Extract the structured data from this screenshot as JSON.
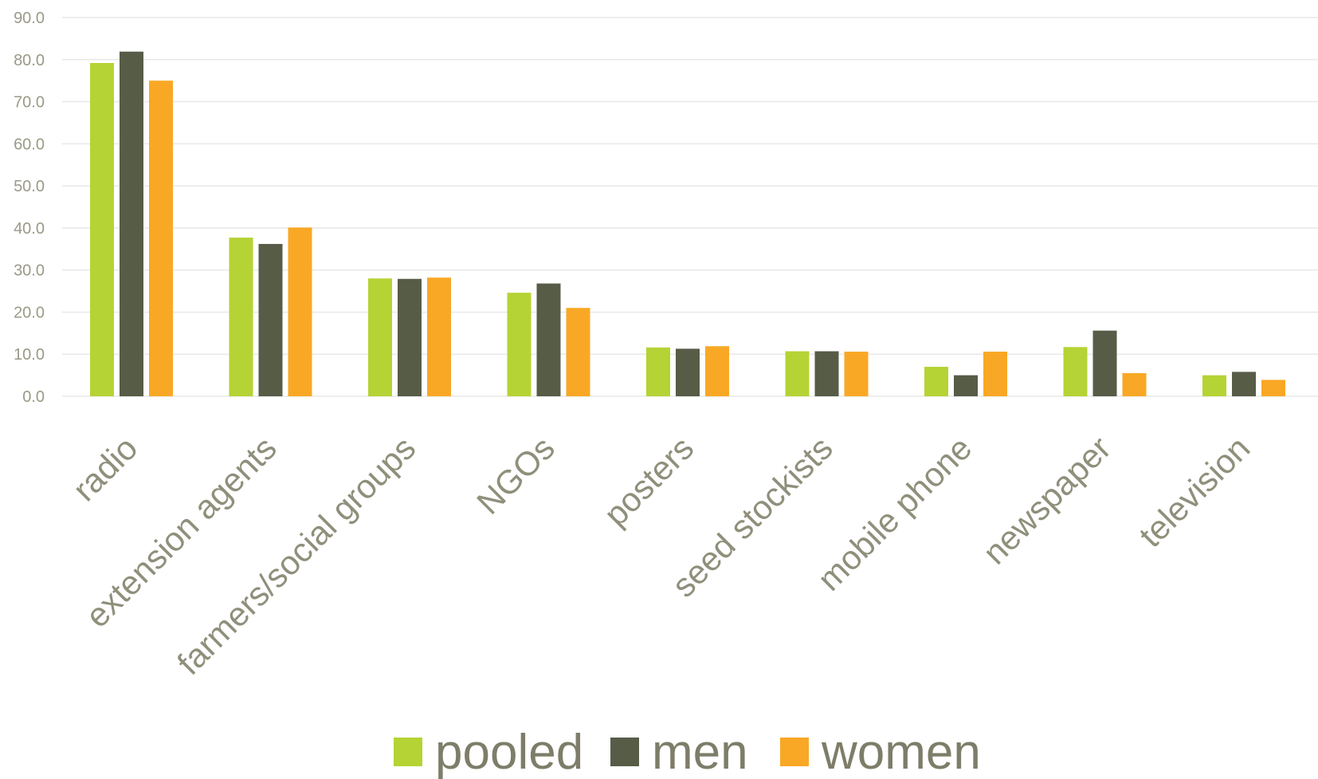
{
  "chart_data": {
    "type": "bar",
    "title": "",
    "xlabel": "",
    "ylabel": "",
    "categories": [
      "radio",
      "extension agents",
      "farmers/social groups",
      "NGOs",
      "posters",
      "seed stockists",
      "mobile phone",
      "newspaper",
      "television"
    ],
    "series": [
      {
        "name": "pooled",
        "color": "#b5d334",
        "values": [
          79.2,
          37.7,
          28.0,
          24.6,
          11.6,
          10.7,
          7.0,
          11.7,
          5.0
        ]
      },
      {
        "name": "men",
        "color": "#575c47",
        "values": [
          81.9,
          36.2,
          27.9,
          26.8,
          11.3,
          10.7,
          5.0,
          15.6,
          5.8
        ]
      },
      {
        "name": "women",
        "color": "#f9a825",
        "values": [
          75.0,
          40.1,
          28.2,
          21.0,
          11.9,
          10.6,
          10.6,
          5.5,
          3.9
        ]
      }
    ],
    "ylim": [
      0,
      90
    ],
    "yticks": [
      "0.0",
      "10.0",
      "20.0",
      "30.0",
      "40.0",
      "50.0",
      "60.0",
      "70.0",
      "80.0",
      "90.0"
    ],
    "grid": true,
    "legend_position": "bottom"
  }
}
